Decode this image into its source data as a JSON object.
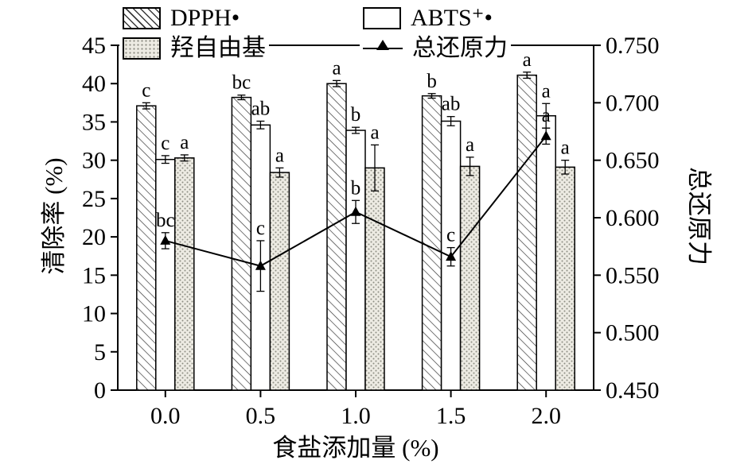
{
  "chart_data": {
    "type": "bar+line",
    "categories": [
      "0.0",
      "0.5",
      "1.0",
      "1.5",
      "2.0"
    ],
    "bar_series": [
      {
        "name": "DPPH•",
        "pattern": "diagonal-hatch",
        "values": [
          37.1,
          38.2,
          40.0,
          38.4,
          41.1
        ],
        "errors": [
          0.4,
          0.3,
          0.4,
          0.3,
          0.4
        ],
        "labels": [
          "c",
          "bc",
          "a",
          "b",
          "a"
        ]
      },
      {
        "name": "ABTS⁺•",
        "pattern": "plain-white",
        "values": [
          30.1,
          34.6,
          33.9,
          35.1,
          35.8
        ],
        "errors": [
          0.5,
          0.5,
          0.4,
          0.6,
          1.6
        ],
        "labels": [
          "c",
          "ab",
          "b",
          "ab",
          "a"
        ]
      },
      {
        "name": "羟自由基",
        "pattern": "dots",
        "values": [
          30.3,
          28.4,
          29.0,
          29.2,
          29.1
        ],
        "errors": [
          0.4,
          0.6,
          3.0,
          1.2,
          0.9
        ],
        "labels": [
          "a",
          "a",
          "a",
          "a",
          "a"
        ]
      }
    ],
    "line_series": {
      "name": "总还原力",
      "axis": "right",
      "marker": "filled-triangle",
      "values": [
        0.58,
        0.558,
        0.605,
        0.566,
        0.671
      ],
      "errors": [
        0.007,
        0.022,
        0.01,
        0.008,
        0.007
      ],
      "labels": [
        "bc",
        "c",
        "b",
        "c",
        "a"
      ]
    },
    "left_axis": {
      "title": "清除率 (%)",
      "min": 0,
      "max": 45,
      "step": 5
    },
    "right_axis": {
      "title": "总还原力",
      "min": 0.45,
      "max": 0.75,
      "step": 0.05
    },
    "x_axis": {
      "title": "食盐添加量 (%)"
    },
    "legend_position": "top",
    "grid": false,
    "colors": {
      "stroke": "#000000",
      "dots_fill": "#edebe3"
    }
  }
}
